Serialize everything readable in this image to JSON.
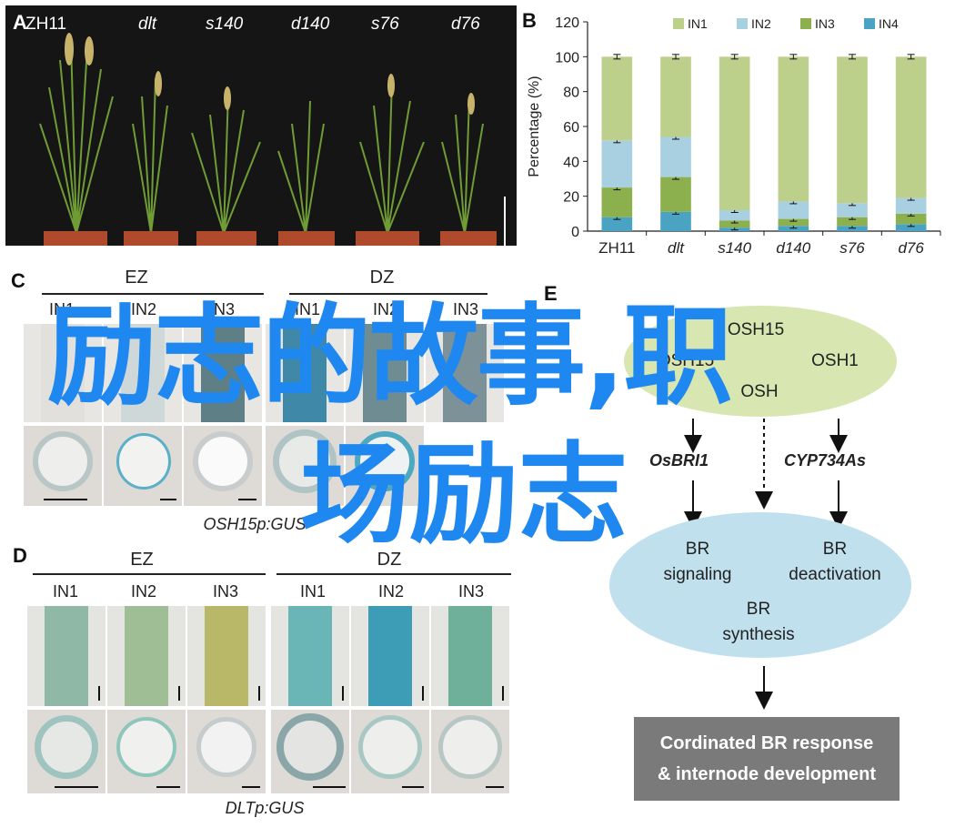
{
  "panels": {
    "a": "A",
    "b": "B",
    "c": "C",
    "d": "D",
    "e": "E"
  },
  "panel_a": {
    "labels": [
      "ZH11",
      "dlt",
      "s140",
      "d140",
      "s76",
      "d76"
    ]
  },
  "chart_data": {
    "type": "bar",
    "stacked": true,
    "categories": [
      "ZH11",
      "dlt",
      "s140",
      "d140",
      "s76",
      "d76"
    ],
    "ylabel": "Percentage (%)",
    "ylim": [
      0,
      120
    ],
    "yticks": [
      0,
      20,
      40,
      60,
      80,
      100,
      120
    ],
    "legend_position": "top",
    "series": [
      {
        "name": "IN4",
        "color": "#4ba3c3",
        "values": [
          8,
          11,
          2,
          3,
          3,
          4
        ]
      },
      {
        "name": "IN3",
        "color": "#8db04e",
        "values": [
          17,
          20,
          4,
          4,
          5,
          6
        ]
      },
      {
        "name": "IN2",
        "color": "#a8d0e0",
        "values": [
          27,
          23,
          6,
          10,
          8,
          9
        ]
      },
      {
        "name": "IN1",
        "color": "#bccf8b",
        "values": [
          48,
          46,
          88,
          83,
          84,
          81
        ]
      }
    ],
    "legend_order": [
      "IN1",
      "IN2",
      "IN3",
      "IN4"
    ]
  },
  "panel_c": {
    "zone1": "EZ",
    "zone2": "DZ",
    "internodes": [
      "IN1",
      "IN2",
      "IN3",
      "IN1",
      "IN2",
      "IN3"
    ],
    "caption": "OSH15p:GUS"
  },
  "panel_d": {
    "zone1": "EZ",
    "zone2": "DZ",
    "internodes": [
      "IN1",
      "IN2",
      "IN3",
      "IN1",
      "IN2",
      "IN3"
    ],
    "caption": "DLTp:GUS"
  },
  "panel_e": {
    "osh_top": "OSH15",
    "osh_left": "OSH15",
    "osh_right": "OSH1",
    "osh_bottom": "OSH",
    "gene_left": "OsBRI1",
    "gene_right": "CYP734As",
    "br_signaling": [
      "BR",
      "signaling"
    ],
    "br_deactivation": [
      "BR",
      "deactivation"
    ],
    "br_synthesis": [
      "BR",
      "synthesis"
    ],
    "result": [
      "Cordinated BR response",
      "& internode development"
    ]
  },
  "watermark": {
    "line1": "励志的故事,职",
    "line2": "场励志"
  }
}
